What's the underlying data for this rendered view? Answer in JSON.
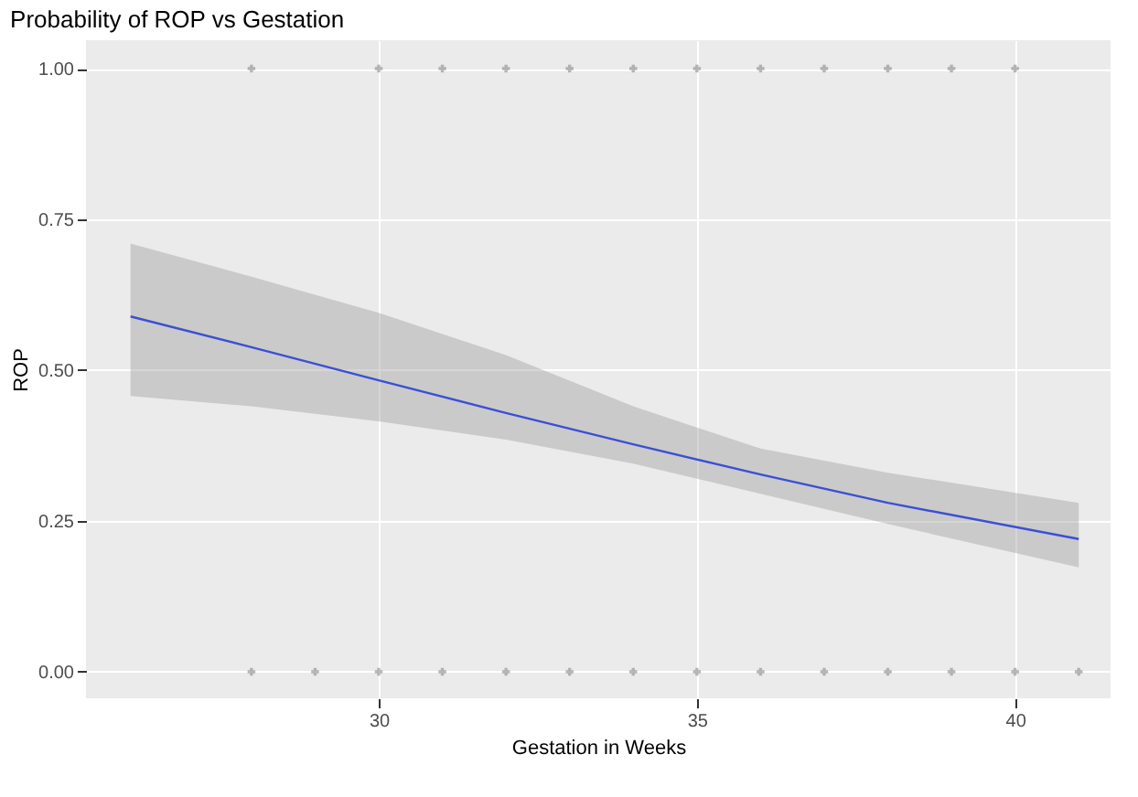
{
  "chart_data": {
    "type": "line",
    "title": "Probability of ROP vs Gestation",
    "xlabel": "Gestation in Weeks",
    "ylabel": "ROP",
    "xlim": [
      25.4,
      41.5
    ],
    "xticks": [
      30,
      35,
      40
    ],
    "ylim": [
      -0.044,
      1.047
    ],
    "yticks": [
      {
        "value": 0,
        "label": "0.00"
      },
      {
        "value": 0.25,
        "label": "0.25"
      },
      {
        "value": 0.5,
        "label": "0.50"
      },
      {
        "value": 0.75,
        "label": "0.75"
      },
      {
        "value": 1,
        "label": "1.00"
      }
    ],
    "grid": true,
    "series": [
      {
        "color": "#3b4fd6",
        "line_style": "solid",
        "marker": "none",
        "x": [
          26.1,
          28,
          30,
          32,
          34,
          36,
          38,
          41
        ],
        "values": [
          0.589,
          0.538,
          0.483,
          0.429,
          0.377,
          0.327,
          0.28,
          0.22
        ],
        "lower": [
          0.457,
          0.44,
          0.415,
          0.385,
          0.345,
          0.295,
          0.245,
          0.173
        ],
        "upper": [
          0.71,
          0.655,
          0.595,
          0.525,
          0.44,
          0.37,
          0.33,
          0.28
        ]
      },
      {
        "type": "scatter",
        "color": "#999999",
        "marker": "cross",
        "x": [
          28,
          30,
          31,
          32,
          33,
          34,
          35,
          36,
          37,
          38,
          39,
          40
        ],
        "values": [
          1,
          1,
          1,
          1,
          1,
          1,
          1,
          1,
          1,
          1,
          1,
          1
        ]
      },
      {
        "type": "scatter",
        "color": "#999999",
        "marker": "cross",
        "x": [
          28,
          29,
          30,
          31,
          32,
          33,
          34,
          35,
          36,
          37,
          38,
          39,
          40,
          41
        ],
        "values": [
          0,
          0,
          0,
          0,
          0,
          0,
          0,
          0,
          0,
          0,
          0,
          0,
          0,
          0
        ]
      }
    ]
  }
}
